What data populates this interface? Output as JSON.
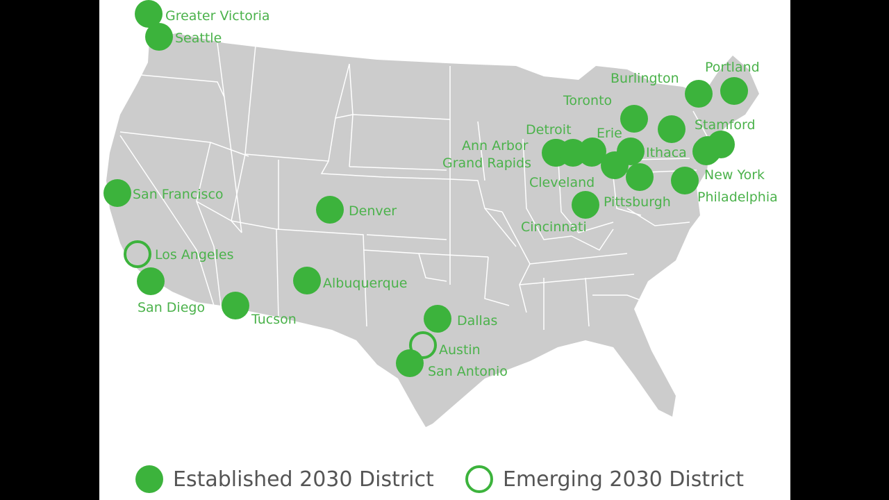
{
  "map": {
    "land_color": "#cccccc",
    "border_color": "#ffffff",
    "accent": "#3cb33c",
    "label_color": "#4bb24b",
    "cities": [
      {
        "name": "Greater Victoria",
        "status": "established"
      },
      {
        "name": "Seattle",
        "status": "established"
      },
      {
        "name": "San Francisco",
        "status": "established"
      },
      {
        "name": "Los Angeles",
        "status": "emerging"
      },
      {
        "name": "San Diego",
        "status": "established"
      },
      {
        "name": "Tucson",
        "status": "established"
      },
      {
        "name": "Albuquerque",
        "status": "established"
      },
      {
        "name": "Denver",
        "status": "established"
      },
      {
        "name": "Dallas",
        "status": "established"
      },
      {
        "name": "Austin",
        "status": "emerging"
      },
      {
        "name": "San Antonio",
        "status": "established"
      },
      {
        "name": "Burlington",
        "status": "established"
      },
      {
        "name": "Portland",
        "status": "established"
      },
      {
        "name": "Toronto",
        "status": "established"
      },
      {
        "name": "Stamford",
        "status": "established"
      },
      {
        "name": "Detroit",
        "status": "established"
      },
      {
        "name": "Erie",
        "status": "established"
      },
      {
        "name": "Ann Arbor",
        "status": "established"
      },
      {
        "name": "Ithaca",
        "status": "established"
      },
      {
        "name": "Grand Rapids",
        "status": "established"
      },
      {
        "name": "New York",
        "status": "established"
      },
      {
        "name": "Cleveland",
        "status": "established"
      },
      {
        "name": "Pittsburgh",
        "status": "established"
      },
      {
        "name": "Philadelphia",
        "status": "established"
      },
      {
        "name": "Cincinnati",
        "status": "established"
      }
    ]
  },
  "legend": {
    "established_label": "Established 2030 District",
    "emerging_label": "Emerging 2030 District"
  }
}
